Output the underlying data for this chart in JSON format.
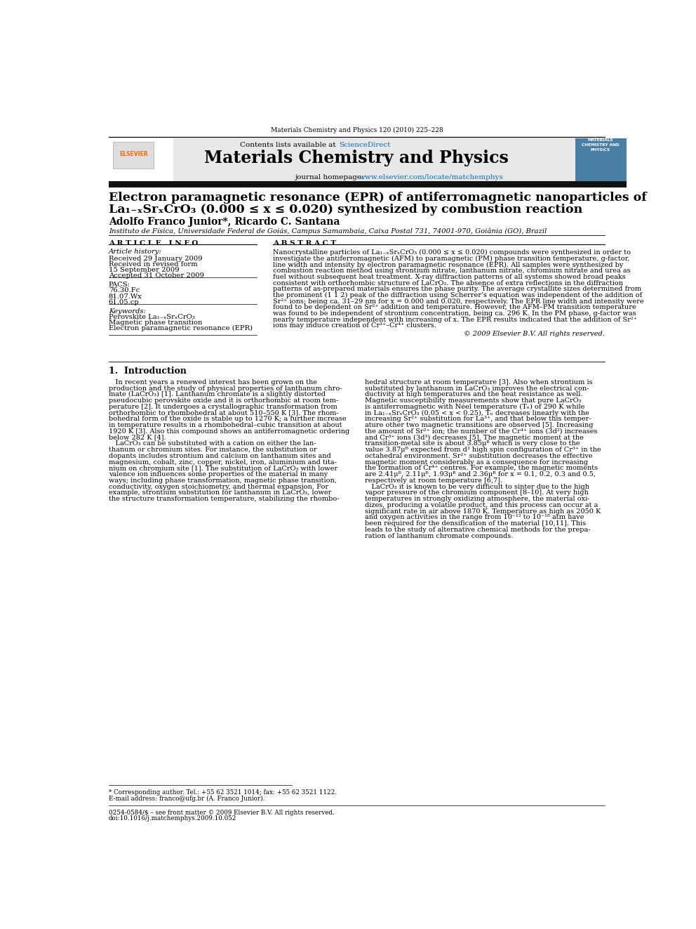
{
  "page_width": 9.92,
  "page_height": 13.23,
  "bg_color": "#ffffff",
  "journal_ref": "Materials Chemistry and Physics 120 (2010) 225–228",
  "contents_line_plain": "Contents lists available at ",
  "contents_line_link": "ScienceDirect",
  "sciencedirect_color": "#0070c0",
  "journal_title": "Materials Chemistry and Physics",
  "journal_url_plain": "journal homepage: ",
  "journal_url_link": "www.elsevier.com/locate/matchemphys",
  "journal_url_color": "#0070c0",
  "paper_title_line1": "Electron paramagnetic resonance (EPR) of antiferromagnetic nanoparticles of",
  "paper_title_line2": "La₁₋ₓSrₓCrO₃ (0.000 ≤ x ≤ 0.020) synthesized by combustion reaction",
  "authors": "Adolfo Franco Junior*, Ricardo C. Santana",
  "affiliation": "Instituto de Física, Universidade Federal de Goiás, Campus Samambaia, Caixa Postal 731, 74001-970, Goiânia (GO), Brazil",
  "article_info_title": "A R T I C L E   I N F O",
  "article_history_title": "Article history:",
  "received1": "Received 29 January 2009",
  "received2": "Received in revised form",
  "received2b": "15 September 2009",
  "accepted": "Accepted 31 October 2009",
  "pacs_title": "PACS:",
  "pacs1": "76.30.Fc",
  "pacs2": "81.07.Wx",
  "pacs3": "61.05.cp",
  "keywords_title": "Keywords:",
  "keyword1": "Perovskite La₁₋ₓSrₓCrO₃",
  "keyword2": "Magnetic phase transition",
  "keyword3": "Electron paramagnetic resonance (EPR)",
  "abstract_title": "A B S T R A C T",
  "abstract_lines": [
    "Nanocrystalline particles of La₁₋ₓSrₓCrO₃ (0.000 ≤ x ≤ 0.020) compounds were synthesized in order to",
    "investigate the antiferromagnetic (AFM) to paramagnetic (PM) phase transition temperature, g-factor,",
    "line width and intensity by electron paramagnetic resonance (EPR). All samples were synthesized by",
    "combustion reaction method using strontium nitrate, lanthanum nitrate, chromium nitrate and urea as",
    "fuel without subsequent heat treatment. X-ray diffraction patterns of all systems showed broad peaks",
    "consistent with orthorhombic structure of LaCrO₃. The absence of extra reflections in the diffraction",
    "patterns of as-prepared materials ensures the phase purity. The average crystallite sizes determined from",
    "the prominent (1 1 2) peak of the diffraction using Scherrer’s equation was independent of the addition of",
    "Sr²⁺ ions; being ca. 31–29 nm for x = 0.000 and 0.020, respectively. The EPR line width and intensity were",
    "found to be dependent on Sr²⁺ addition and temperature. However, the AFM–PM transition temperature",
    "was found to be independent of strontium concentration, being ca. 296 K. In the PM phase, g-factor was",
    "nearly temperature independent with increasing of x. The EPR results indicated that the addition of Sr²⁺",
    "ions may induce creation of Cr³⁺–Cr⁴⁺ clusters."
  ],
  "copyright": "© 2009 Elsevier B.V. All rights reserved.",
  "section1_title": "1.  Introduction",
  "intro_col1_lines": [
    "   In recent years a renewed interest has been grown on the",
    "production and the study of physical properties of lanthanum chro-",
    "mate (LaCrO₃) [1]. Lanthanum chromate is a slightly distorted",
    "pseudocubic perovskite oxide and it is orthorhombic at room tem-",
    "perature [2]. It undergoes a crystallographic transformation from",
    "orthorhombic to rhombohedral at about 510–550 K [3]. The rhom-",
    "bohedral form of the oxide is stable up to 1270 K; a further increase",
    "in temperature results in a rhombohedral–cubic transition at about",
    "1920 K [3]. Also this compound shows an antiferromagnetic ordering",
    "below 282 K [4].",
    "   LaCrO₃ can be substituted with a cation on either the lan-",
    "thanum or chromium sites. For instance, the substitution or",
    "dopants includes strontium and calcium on lanthanum sites and",
    "magnesium, cobalt, zinc, copper, nickel, iron, aluminium and tita-",
    "nium on chromium site [1]. The substitution of LaCrO₃ with lower",
    "valence ion influences some properties of the material in many",
    "ways; including phase transformation, magnetic phase transition,",
    "conductivity, oxygen stoichiometry, and thermal expansion. For",
    "example, strontium substitution for lanthanum in LaCrO₃, lower",
    "the structure transformation temperature, stabilizing the rhombo-"
  ],
  "intro_col2_lines": [
    "hedral structure at room temperature [3]. Also when strontium is",
    "substituted by lanthanum in LaCrO₃ improves the electrical con-",
    "ductivity at high temperatures and the heat resistance as well.",
    "Magnetic susceptibility measurements show that pure LaCrO₃",
    "is antiferromagnetic with Néel temperature (Tₙ) of 290 K while",
    "in La₁₋ₓSrₓCrO₃ (0.05 < x < 0.25), Tₙ decreases linearly with the",
    "increasing Sr²⁺ substitution for La³⁺, and that below this temper-",
    "ature other two magnetic transitions are observed [5]. Increasing",
    "the amount of Sr²⁺ ion; the number of the Cr⁴⁺ ions (3d²) increases",
    "and Cr³⁺ ions (3d³) decreases [5]. The magnetic moment at the",
    "transition-metal site is about 3.85μᴮ which is very close to the",
    "value 3.87μᴮ expected from d³ high spin configuration of Cr³⁺ in the",
    "octahedral environment. Sr²⁺ substitution decreases the effective",
    "magnetic moment considerably as a consequence for increasing",
    "the formation of Cr⁴⁺ centres. For example, the magnetic moments",
    "are 2.41μᴮ, 2.11μᴮ, 1.93μᴮ and 2.36μᴮ for x = 0.1, 0.2, 0.3 and 0.5,",
    "respectively at room temperature [6,7].",
    "   LaCrO₃ it is known to be very difficult to sinter due to the high",
    "vapor pressure of the chromium component [8–10]. At very high",
    "temperatures in strongly oxidizing atmosphere, the material oxi-",
    "dizes, producing a volatile product, and this process can occur at a",
    "significant rate in air above 1870 K. Temperature as high as 2050 K",
    "and oxygen activities in the range from 10⁻¹² to 10⁻¹⁸ atm have",
    "been required for the densification of the material [10,11]. This",
    "leads to the study of alternative chemical methods for the prepa-",
    "ration of lanthanum chromate compounds."
  ],
  "footnote1": "* Corresponding author. Tel.: +55 62 3521 1014; fax: +55 62 3521 1122.",
  "footnote2": "E-mail address: franco@ufg.br (A. Franco Junior).",
  "issn_line": "0254-0584/$ – see front matter © 2009 Elsevier B.V. All rights reserved.",
  "doi_line": "doi:10.1016/j.matchemphys.2009.10.052",
  "header_bg": "#e8e8e8",
  "dark_bar_color": "#111111",
  "elsevier_color": "#ff6600",
  "sidebar_bg": "#4a7fa5"
}
